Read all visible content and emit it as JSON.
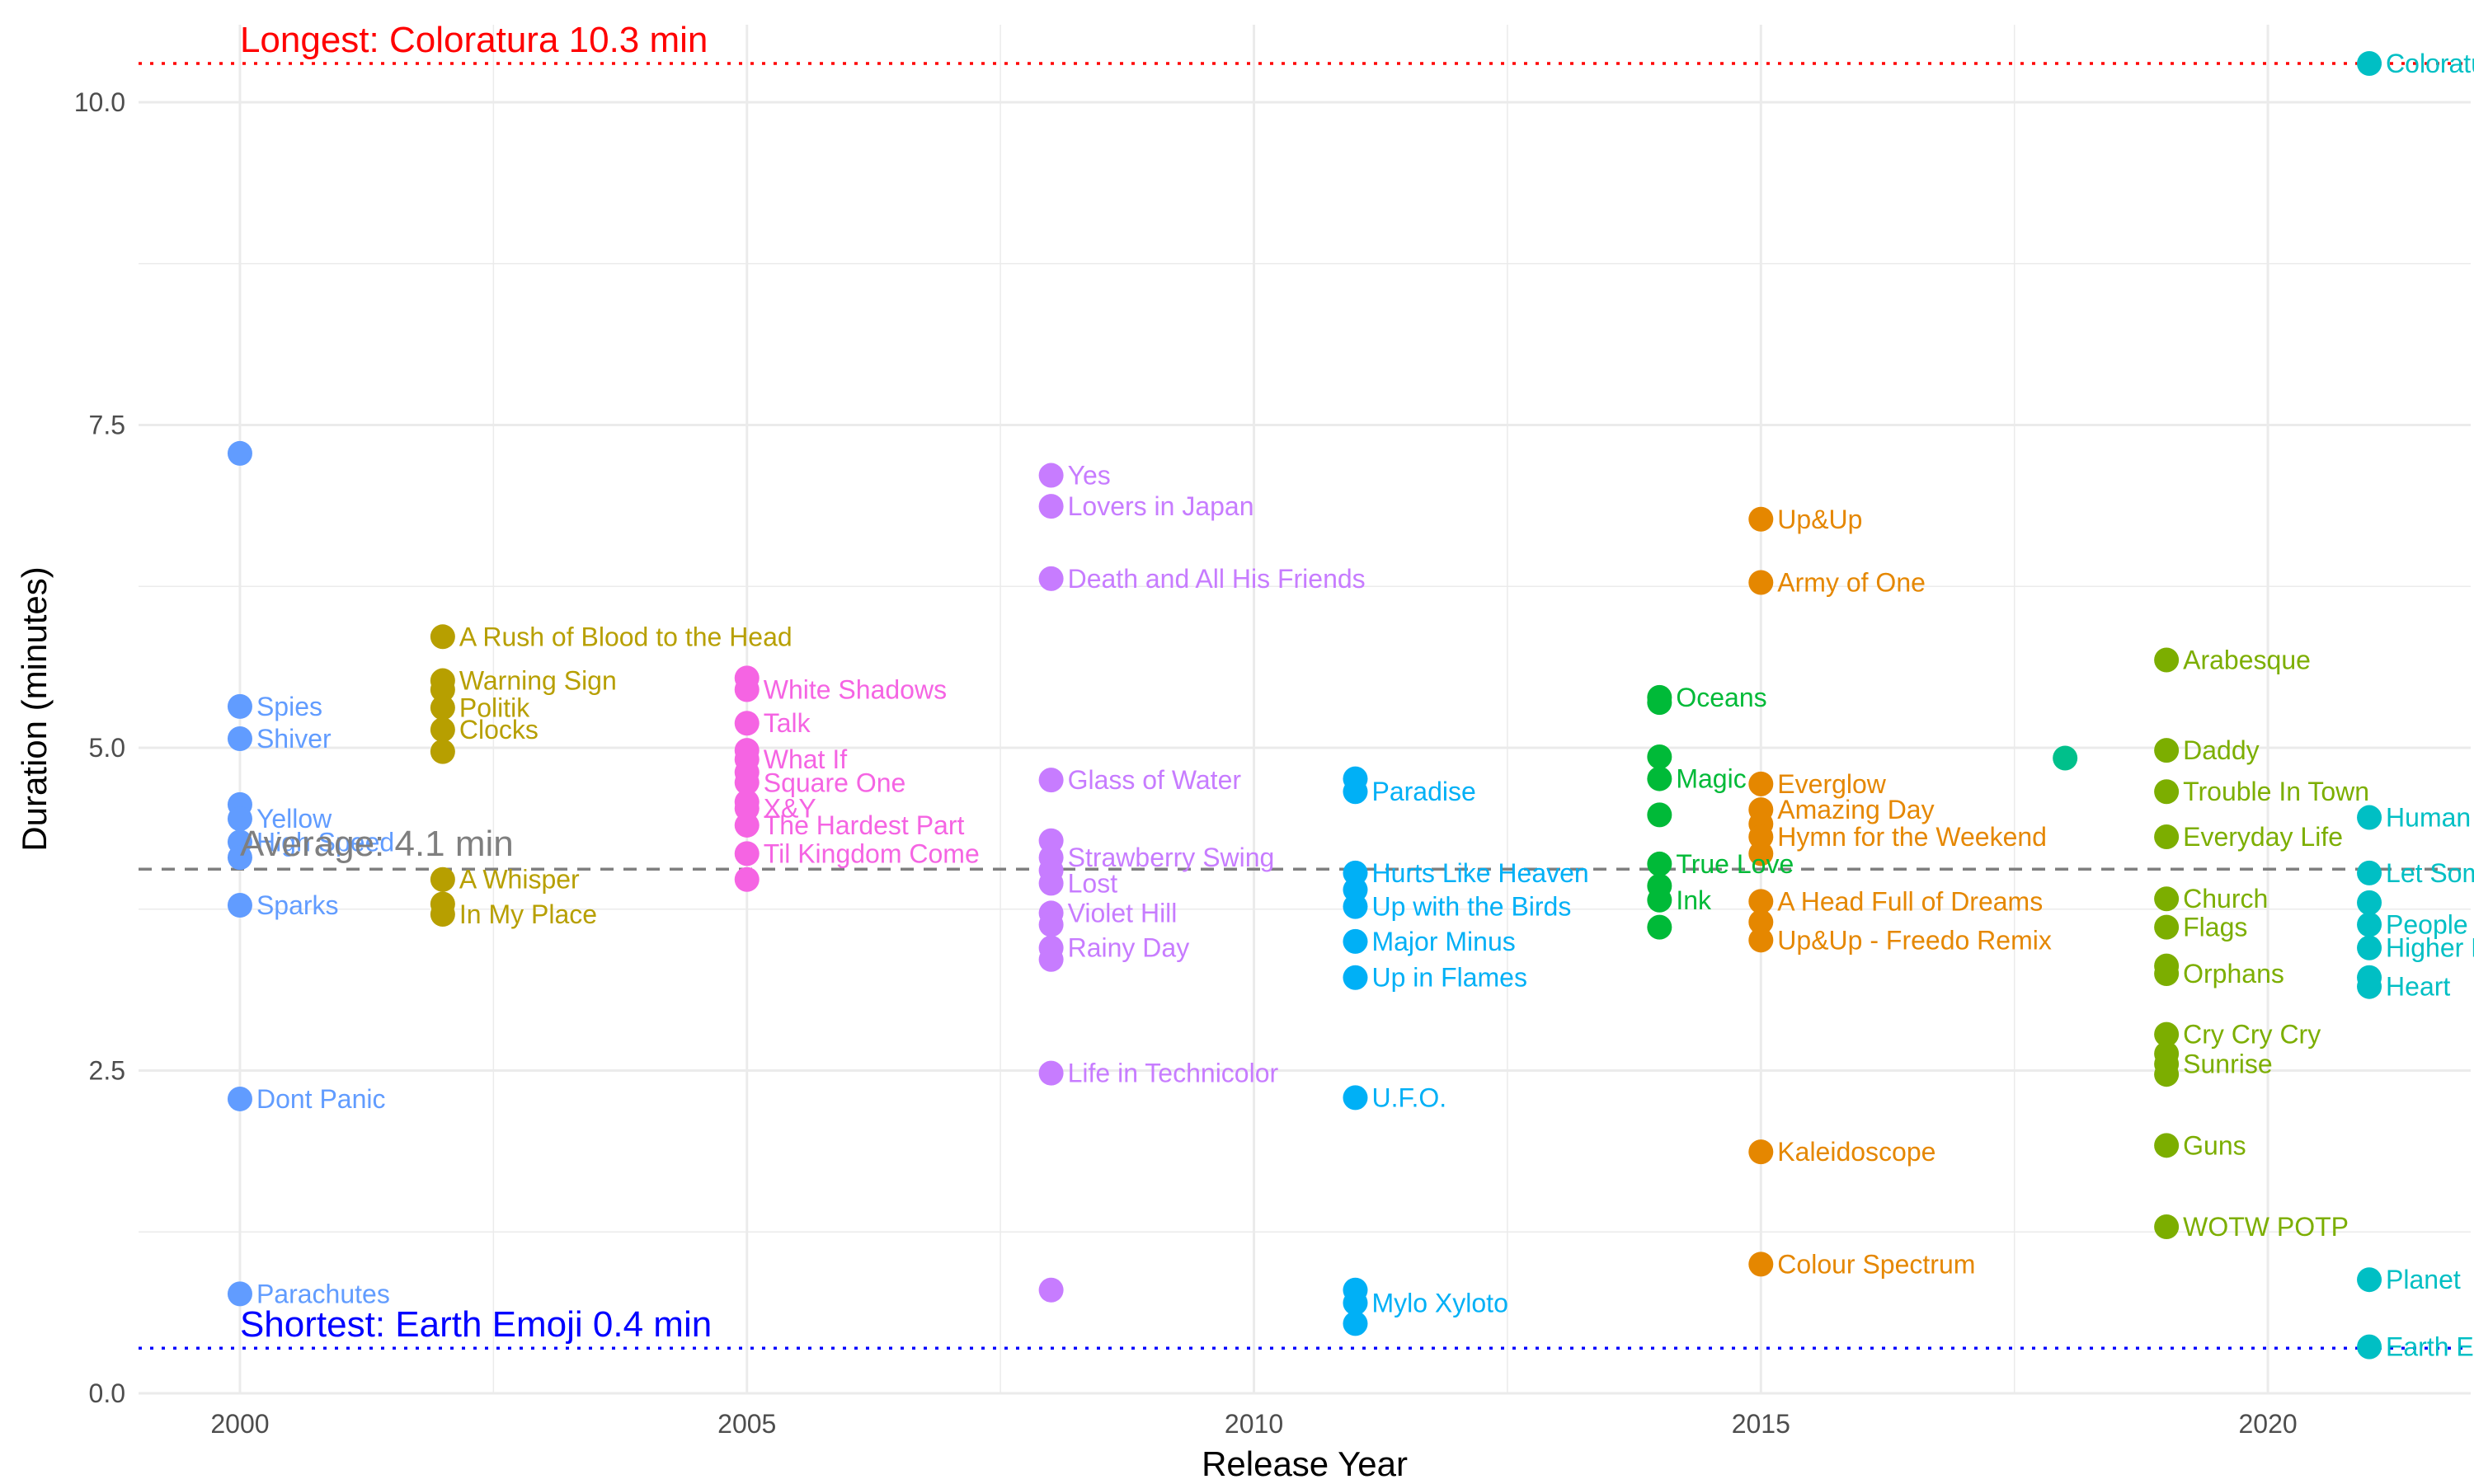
{
  "chart_data": {
    "type": "scatter",
    "xlabel": "Release Year",
    "ylabel": "Duration (minutes)",
    "xlim": [
      1999,
      2022
    ],
    "ylim": [
      0,
      10.6
    ],
    "x_ticks": [
      2000,
      2005,
      2010,
      2015,
      2020
    ],
    "y_ticks": [
      "0.0",
      "2.5",
      "5.0",
      "7.5",
      "10.0"
    ],
    "grid": true,
    "reference_lines": {
      "longest": {
        "label": "Longest: Coloratura 10.3 min",
        "value": 10.3,
        "color": "#ff0000"
      },
      "shortest": {
        "label": "Shortest: Earth Emoji 0.4 min",
        "value": 0.35,
        "color": "#0000ff"
      },
      "average": {
        "label": "Average: 4.1 min",
        "value": 4.06,
        "color": "#7f7f7f"
      }
    },
    "series": [
      {
        "x": 2000,
        "color": "#619cff",
        "points": [
          {
            "y": 7.28,
            "label": ""
          },
          {
            "y": 5.32,
            "label": "Spies"
          },
          {
            "y": 5.07,
            "label": "Shiver"
          },
          {
            "y": 4.56,
            "label": ""
          },
          {
            "y": 4.45,
            "label": "Yellow"
          },
          {
            "y": 4.27,
            "label": "High Speed"
          },
          {
            "y": 4.15,
            "label": ""
          },
          {
            "y": 3.78,
            "label": "Sparks"
          },
          {
            "y": 2.28,
            "label": "Dont Panic"
          },
          {
            "y": 0.77,
            "label": "Parachutes"
          }
        ]
      },
      {
        "x": 2002,
        "color": "#b79f00",
        "points": [
          {
            "y": 5.86,
            "label": "A Rush of Blood to the Head"
          },
          {
            "y": 5.52,
            "label": "Warning Sign"
          },
          {
            "y": 5.45,
            "label": ""
          },
          {
            "y": 5.31,
            "label": "Politik"
          },
          {
            "y": 5.14,
            "label": "Clocks"
          },
          {
            "y": 4.97,
            "label": ""
          },
          {
            "y": 3.98,
            "label": "A Whisper"
          },
          {
            "y": 3.79,
            "label": ""
          },
          {
            "y": 3.71,
            "label": "In My Place"
          }
        ]
      },
      {
        "x": 2005,
        "color": "#f564e3",
        "points": [
          {
            "y": 5.54,
            "label": ""
          },
          {
            "y": 5.45,
            "label": "White Shadows"
          },
          {
            "y": 5.19,
            "label": "Talk"
          },
          {
            "y": 4.98,
            "label": ""
          },
          {
            "y": 4.91,
            "label": "What If"
          },
          {
            "y": 4.81,
            "label": ""
          },
          {
            "y": 4.73,
            "label": "Square One"
          },
          {
            "y": 4.58,
            "label": ""
          },
          {
            "y": 4.53,
            "label": "X&Y"
          },
          {
            "y": 4.4,
            "label": "The Hardest Part"
          },
          {
            "y": 4.18,
            "label": "Til Kingdom Come"
          },
          {
            "y": 3.98,
            "label": ""
          }
        ]
      },
      {
        "x": 2008,
        "color": "#c77cff",
        "points": [
          {
            "y": 7.11,
            "label": "Yes"
          },
          {
            "y": 6.87,
            "label": "Lovers in Japan"
          },
          {
            "y": 6.31,
            "label": "Death and All His Friends"
          },
          {
            "y": 4.75,
            "label": "Glass of Water"
          },
          {
            "y": 4.28,
            "label": ""
          },
          {
            "y": 4.15,
            "label": "Strawberry Swing"
          },
          {
            "y": 4.05,
            "label": ""
          },
          {
            "y": 3.95,
            "label": "Lost"
          },
          {
            "y": 3.72,
            "label": "Violet Hill"
          },
          {
            "y": 3.63,
            "label": ""
          },
          {
            "y": 3.45,
            "label": "Rainy Day"
          },
          {
            "y": 3.36,
            "label": ""
          },
          {
            "y": 2.48,
            "label": "Life in Technicolor"
          },
          {
            "y": 0.8,
            "label": ""
          }
        ]
      },
      {
        "x": 2011,
        "color": "#00b0f6",
        "points": [
          {
            "y": 4.76,
            "label": ""
          },
          {
            "y": 4.66,
            "label": "Paradise"
          },
          {
            "y": 4.03,
            "label": "Hurts Like Heaven"
          },
          {
            "y": 3.9,
            "label": ""
          },
          {
            "y": 3.77,
            "label": "Up with the Birds"
          },
          {
            "y": 3.5,
            "label": "Major Minus"
          },
          {
            "y": 3.22,
            "label": "Up in Flames"
          },
          {
            "y": 2.29,
            "label": "U.F.O."
          },
          {
            "y": 0.8,
            "label": ""
          },
          {
            "y": 0.7,
            "label": "Mylo Xyloto"
          },
          {
            "y": 0.54,
            "label": ""
          }
        ]
      },
      {
        "x": 2014,
        "color": "#00ba38",
        "points": [
          {
            "y": 5.39,
            "label": "Oceans"
          },
          {
            "y": 5.35,
            "label": ""
          },
          {
            "y": 4.93,
            "label": ""
          },
          {
            "y": 4.76,
            "label": "Magic"
          },
          {
            "y": 4.48,
            "label": ""
          },
          {
            "y": 4.1,
            "label": "True Love"
          },
          {
            "y": 3.93,
            "label": ""
          },
          {
            "y": 3.82,
            "label": "Ink"
          },
          {
            "y": 3.61,
            "label": ""
          }
        ]
      },
      {
        "x": 2015,
        "color": "#e58700",
        "points": [
          {
            "y": 6.77,
            "label": "Up&Up"
          },
          {
            "y": 6.28,
            "label": "Army of One"
          },
          {
            "y": 4.72,
            "label": "Everglow"
          },
          {
            "y": 4.52,
            "label": "Amazing Day"
          },
          {
            "y": 4.41,
            "label": ""
          },
          {
            "y": 4.31,
            "label": "Hymn for the Weekend"
          },
          {
            "y": 4.18,
            "label": ""
          },
          {
            "y": 3.81,
            "label": "A Head Full of Dreams"
          },
          {
            "y": 3.65,
            "label": ""
          },
          {
            "y": 3.51,
            "label": "Up&Up - Freedo Remix"
          },
          {
            "y": 1.87,
            "label": "Kaleidoscope"
          },
          {
            "y": 1.0,
            "label": "Colour Spectrum"
          }
        ]
      },
      {
        "x": 2018,
        "color": "#00c08b",
        "points": [
          {
            "y": 4.92,
            "label": ""
          }
        ]
      },
      {
        "x": 2019,
        "color": "#7cae00",
        "points": [
          {
            "y": 5.68,
            "label": "Arabesque"
          },
          {
            "y": 4.98,
            "label": "Daddy"
          },
          {
            "y": 4.66,
            "label": "Trouble In Town"
          },
          {
            "y": 4.31,
            "label": "Everyday Life"
          },
          {
            "y": 3.83,
            "label": "Church"
          },
          {
            "y": 3.61,
            "label": "Flags"
          },
          {
            "y": 3.31,
            "label": ""
          },
          {
            "y": 3.25,
            "label": "Orphans"
          },
          {
            "y": 2.78,
            "label": "Cry Cry Cry"
          },
          {
            "y": 2.63,
            "label": ""
          },
          {
            "y": 2.55,
            "label": "Sunrise"
          },
          {
            "y": 2.47,
            "label": ""
          },
          {
            "y": 1.92,
            "label": "Guns"
          },
          {
            "y": 1.29,
            "label": "WOTW POTP"
          }
        ]
      },
      {
        "x": 2021,
        "color": "#00bfc4",
        "points": [
          {
            "y": 10.3,
            "label": "Coloratura"
          },
          {
            "y": 4.46,
            "label": "Human Heart"
          },
          {
            "y": 4.03,
            "label": "Let Somebody Go"
          },
          {
            "y": 3.8,
            "label": ""
          },
          {
            "y": 3.63,
            "label": "People of the Pride"
          },
          {
            "y": 3.45,
            "label": "Higher Power"
          },
          {
            "y": 3.22,
            "label": ""
          },
          {
            "y": 3.15,
            "label": "Heart"
          },
          {
            "y": 0.88,
            "label": "Planet"
          },
          {
            "y": 0.36,
            "label": "Earth Emoji"
          }
        ]
      }
    ]
  }
}
